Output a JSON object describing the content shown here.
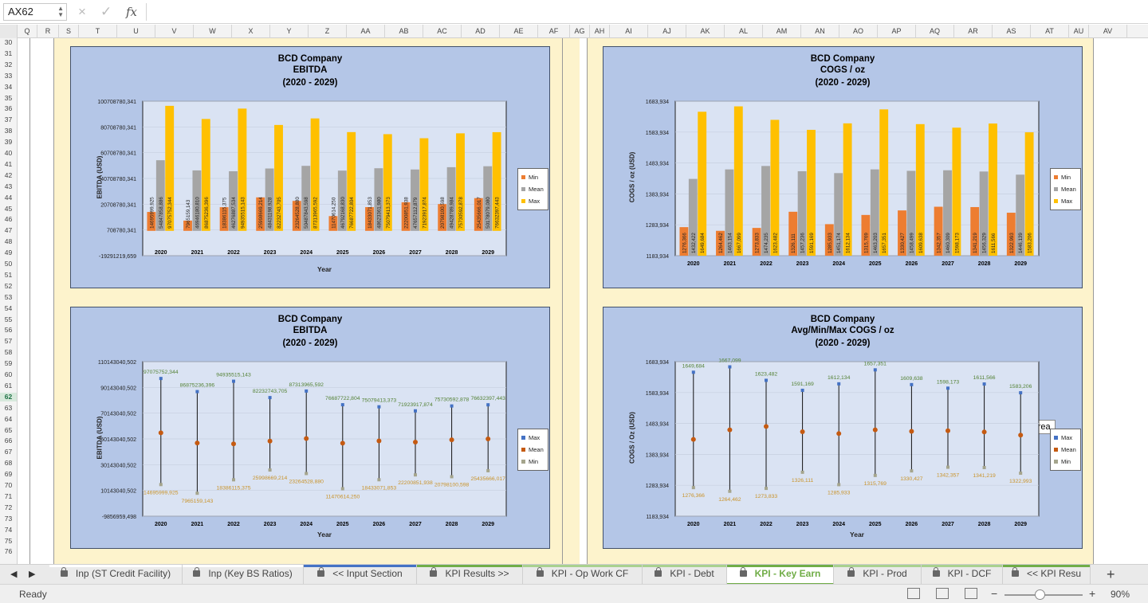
{
  "formula_bar": {
    "name_box": "AX62",
    "cancel_icon": "×",
    "confirm_icon": "✓",
    "fx_label": "fx",
    "formula": ""
  },
  "columns": [
    "Q",
    "R",
    "S",
    "T",
    "U",
    "V",
    "W",
    "X",
    "Y",
    "Z",
    "AA",
    "AB",
    "AC",
    "AD",
    "AE",
    "AF",
    "AG",
    "AH",
    "AI",
    "AJ",
    "AK",
    "AL",
    "AM",
    "AN",
    "AO",
    "AP",
    "AQ",
    "AR",
    "AS",
    "AT",
    "AU",
    "AV"
  ],
  "rows": [
    "30",
    "31",
    "32",
    "33",
    "34",
    "35",
    "36",
    "37",
    "38",
    "39",
    "40",
    "41",
    "42",
    "43",
    "44",
    "45",
    "46",
    "47",
    "48",
    "49",
    "50",
    "51",
    "52",
    "53",
    "54",
    "55",
    "56",
    "57",
    "58",
    "59",
    "60",
    "61",
    "62",
    "63",
    "64",
    "65",
    "66",
    "67",
    "68",
    "69",
    "70",
    "71",
    "72",
    "73",
    "74",
    "75",
    "76"
  ],
  "selected_row": "62",
  "chart_data": [
    {
      "type": "bar",
      "title": "BCD Company",
      "subtitle": "EBITDA",
      "period": "(2020 - 2029)",
      "xlabel": "Year",
      "ylabel": "EBITDA (USD)",
      "ylim": [
        -19291219.659,
        100708780.341
      ],
      "yticks": [
        "100708780,341",
        "80708780,341",
        "60708780,341",
        "40708780,341",
        "20708780,341",
        "708780,341",
        "-19291219,659"
      ],
      "categories": [
        "2020",
        "2021",
        "2022",
        "2023",
        "2024",
        "2025",
        "2026",
        "2027",
        "2028",
        "2029"
      ],
      "legend_position": "right",
      "series": [
        {
          "name": "Min",
          "color": "#ed7d31",
          "values": [
            14695999.925,
            7965159.143,
            18386115.375,
            25998669.214,
            23264528.88,
            11470614.25,
            18433071.853,
            22200851.938,
            20798100.598,
            25435666.017
          ],
          "labels": [
            "14695999,925",
            "7965159,143",
            "18386115,375",
            "25998669,214",
            "23264528,880",
            "11470614,250",
            "18433071,853",
            "22200851,938",
            "20798100,598",
            "25435666,017"
          ]
        },
        {
          "name": "Mean",
          "color": "#a5a5a5",
          "values": [
            54847858.886,
            46946180.81,
            46276887.534,
            48431198.928,
            50487843.598,
            46792168.83,
            48623361.98,
            47657112.879,
            49428789.984,
            50178079.08
          ],
          "labels": [
            "54847858,886",
            "46946180,810",
            "46276887,534",
            "48431198,928",
            "50487843,598",
            "46792168,830",
            "48623361,980",
            "47657112,879",
            "49428789,984",
            "50178079,080"
          ]
        },
        {
          "name": "Max",
          "color": "#ffc000",
          "values": [
            97075752.344,
            86875236.396,
            94935515.143,
            82232743.705,
            87313965.592,
            76687722.804,
            75079413.373,
            71923917.874,
            75730592.878,
            76632397.443
          ],
          "labels": [
            "97075752,344",
            "86875236,396",
            "94935515,143",
            "82232743,705",
            "87313965,592",
            "76687722,804",
            "75079413,373",
            "71923917,874",
            "75730592,878",
            "76632397,443"
          ]
        }
      ]
    },
    {
      "type": "bar",
      "title": "BCD Company",
      "subtitle": "COGS / oz",
      "period": "(2020 - 2029)",
      "xlabel": "",
      "ylabel": "COGS / oz (USD)",
      "ylim": [
        1183.934,
        1683.934
      ],
      "yticks": [
        "1683,934",
        "1583,934",
        "1483,934",
        "1383,934",
        "1283,934",
        "1183,934"
      ],
      "categories": [
        "2020",
        "2021",
        "2022",
        "2023",
        "2024",
        "2025",
        "2026",
        "2027",
        "2028",
        "2029"
      ],
      "legend_position": "right",
      "series": [
        {
          "name": "Min",
          "color": "#ed7d31",
          "values": [
            1276.366,
            1264.462,
            1273.833,
            1326.111,
            1285.933,
            1315.769,
            1330.427,
            1342.357,
            1341.219,
            1322.993
          ],
          "labels": [
            "1276,366",
            "1264,462",
            "1273,833",
            "1326,111",
            "1285,933",
            "1315,769",
            "1330,427",
            "1342,357",
            "1341,219",
            "1322,993"
          ]
        },
        {
          "name": "Mean",
          "color": "#a5a5a5",
          "values": [
            1432.422,
            1463.154,
            1474.235,
            1457.236,
            1451.174,
            1463.203,
            1458.499,
            1460.309,
            1456.329,
            1446.139
          ],
          "labels": [
            "1432,422",
            "1463,154",
            "1474,235",
            "1457,236",
            "1451,174",
            "1463,203",
            "1458,499",
            "1460,309",
            "1456,329",
            "1446,139"
          ]
        },
        {
          "name": "Max",
          "color": "#ffc000",
          "values": [
            1649.684,
            1667.099,
            1623.482,
            1591.169,
            1612.134,
            1657.351,
            1609.638,
            1598.173,
            1611.566,
            1583.206
          ],
          "labels": [
            "1649,684",
            "1667,099",
            "1623,482",
            "1591,169",
            "1612,134",
            "1657,351",
            "1609,638",
            "1598,173",
            "1611,566",
            "1583,206"
          ]
        }
      ]
    },
    {
      "type": "scatter",
      "title": "BCD Company",
      "subtitle": "EBITDA",
      "period": "(2020 - 2029)",
      "xlabel": "Year",
      "ylabel": "EBITDA (USD)",
      "ylim": [
        -9856959.498,
        110143040.502
      ],
      "yticks": [
        "110143040,502",
        "90143040,502",
        "70143040,502",
        "50143040,502",
        "30143040,502",
        "10143040,502",
        "-9856959,498"
      ],
      "categories": [
        "2020",
        "2021",
        "2022",
        "2023",
        "2024",
        "2025",
        "2026",
        "2027",
        "2028",
        "2029"
      ],
      "legend_position": "right",
      "series": [
        {
          "name": "Max",
          "color": "#4472c4",
          "label_color": "#548235",
          "values": [
            97075752.344,
            86875236.396,
            94935515.143,
            82232743.705,
            87313965.592,
            76687722.804,
            75079413.373,
            71923917.874,
            75730592.878,
            76632397.443
          ],
          "labels": [
            "97075752,344",
            "86875236,396",
            "94935515,143",
            "82232743,705",
            "87313965,592",
            "76687722,804",
            "75079413,373",
            "71923917,874",
            "75730592,878",
            "76632397,443"
          ]
        },
        {
          "name": "Mean",
          "color": "#c55a11",
          "values": [
            54847858.886,
            46946180.81,
            46276887.534,
            48431198.928,
            50487843.598,
            46792168.83,
            48623361.98,
            47657112.879,
            49428789.984,
            50178079.08
          ],
          "labels": []
        },
        {
          "name": "Min",
          "color": "#a5a58d",
          "label_color": "#c9932a",
          "values": [
            14695999.925,
            7965159.143,
            18386115.375,
            25998669.214,
            23264528.88,
            11470614.25,
            18433071.853,
            22200851.938,
            20798100.598,
            25435666.017
          ],
          "labels": [
            "14695999,925",
            "7965159,143",
            "18386115,375",
            "25998669,214",
            "23264528,880",
            "11470614,250",
            "18433071,853",
            "22200851,938",
            "20798100,598",
            "25435666,017"
          ]
        }
      ]
    },
    {
      "type": "scatter",
      "title": "BCD Company",
      "subtitle": "Avg/Min/Max COGS / oz",
      "period": "(2020 - 2029)",
      "xlabel": "Year",
      "ylabel": "COGS / Oz (USD)",
      "ylim": [
        1183.934,
        1683.934
      ],
      "yticks": [
        "1683,934",
        "1583,934",
        "1483,934",
        "1383,934",
        "1283,934",
        "1183,934"
      ],
      "categories": [
        "2020",
        "2021",
        "2022",
        "2023",
        "2024",
        "2025",
        "2026",
        "2027",
        "2028",
        "2029"
      ],
      "legend_position": "right",
      "series": [
        {
          "name": "Max",
          "color": "#4472c4",
          "label_color": "#548235",
          "values": [
            1649.684,
            1667.099,
            1623.482,
            1591.169,
            1612.134,
            1657.351,
            1609.638,
            1598.173,
            1611.566,
            1583.206
          ],
          "labels": [
            "1649,684",
            "1667,099",
            "1623,482",
            "1591,169",
            "1612,134",
            "1657,351",
            "1609,638",
            "1598,173",
            "1611,566",
            "1583,206"
          ]
        },
        {
          "name": "Mean",
          "color": "#c55a11",
          "values": [
            1432.422,
            1463.154,
            1474.235,
            1457.236,
            1451.174,
            1463.203,
            1458.499,
            1460.309,
            1456.329,
            1446.139
          ],
          "labels": []
        },
        {
          "name": "Min",
          "color": "#a5a58d",
          "label_color": "#c9932a",
          "values": [
            1276.366,
            1264.462,
            1273.833,
            1326.111,
            1285.933,
            1315.769,
            1330.427,
            1342.357,
            1341.219,
            1322.993
          ],
          "labels": [
            "1276,366",
            "1264,462",
            "1273,833",
            "1326,111",
            "1285,933",
            "1315,769",
            "1330,427",
            "1342,357",
            "1341,219",
            "1322,993"
          ]
        }
      ]
    }
  ],
  "tooltip": "Plot Area",
  "sheet_tabs": [
    {
      "label": "Inp (ST Credit Facility)",
      "color": "#ffffff"
    },
    {
      "label": "Inp (Key BS Ratios)",
      "color": "#ffffff"
    },
    {
      "label": "<< Input Section",
      "color": "#4472c4"
    },
    {
      "label": "KPI Results >>",
      "color": "#70ad47"
    },
    {
      "label": "KPI - Op Work CF",
      "color": "#a9d18e"
    },
    {
      "label": "KPI - Debt",
      "color": "#a9d18e"
    },
    {
      "label": "KPI - Key Earn",
      "color": "#70ad47",
      "active": true
    },
    {
      "label": "KPI - Prod",
      "color": "#a9d18e"
    },
    {
      "label": "KPI - DCF",
      "color": "#a9d18e"
    },
    {
      "label": "<< KPI Resu",
      "color": "#70ad47"
    }
  ],
  "status_bar": {
    "status": "Ready",
    "zoom": "90%"
  }
}
